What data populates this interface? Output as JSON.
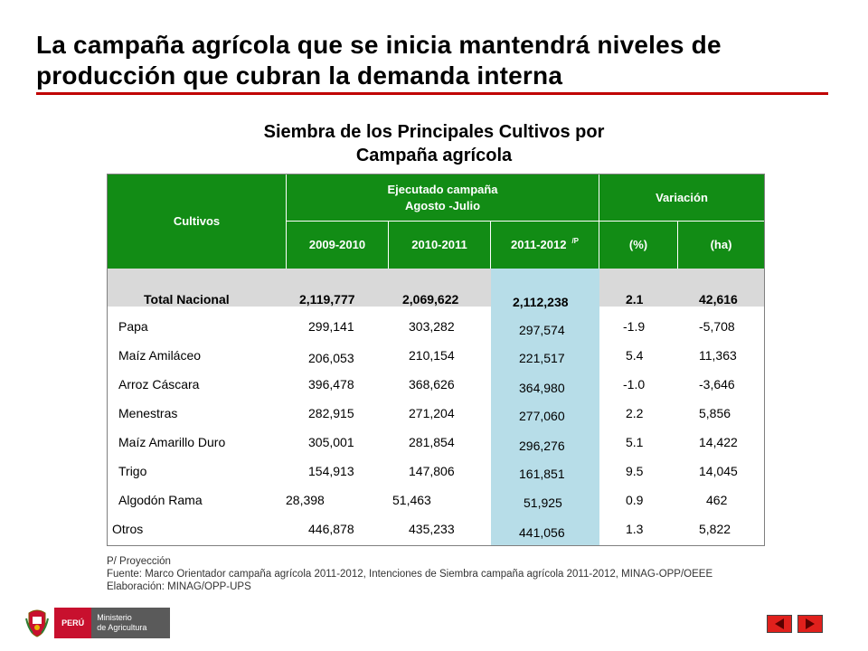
{
  "headline": {
    "line1": "La campaña agrícola que se inicia mantendrá niveles de",
    "line2": "producción que cubran la demanda interna"
  },
  "table_title": {
    "line1": "Siembra de los Principales Cultivos por",
    "line2": "Campaña agrícola"
  },
  "table": {
    "col_cultivos": "Cultivos",
    "group_ejecutado_line1": "Ejecutado  campaña",
    "group_ejecutado_line2": "Agosto -Julio",
    "group_variacion": "Variación",
    "sub_2009": "2009-2010",
    "sub_2010": "2010-2011",
    "sub_2011": "2011-2012",
    "sub_2011_mark": "/P",
    "sub_pct": "(%)",
    "sub_ha": "(ha)",
    "total": {
      "name": "Total Nacional",
      "v2009": "2,119,777",
      "v2010": "2,069,622",
      "v2011": "2,112,238",
      "pct": "2.1",
      "ha": "42,616"
    },
    "rows": [
      {
        "name": "Papa",
        "v2009": "299,141",
        "v2010": "303,282",
        "v2011": "297,574",
        "pct": "-1.9",
        "ha": "-5,708"
      },
      {
        "name": "Maíz Amiláceo",
        "v2009": "206,053",
        "v2010": "210,154",
        "v2011": "221,517",
        "pct": "5.4",
        "ha": "11,363"
      },
      {
        "name": "Arroz Cáscara",
        "v2009": "396,478",
        "v2010": "368,626",
        "v2011": "364,980",
        "pct": "-1.0",
        "ha": "-3,646"
      },
      {
        "name": "Menestras",
        "v2009": "282,915",
        "v2010": "271,204",
        "v2011": "277,060",
        "pct": "2.2",
        "ha": "5,856"
      },
      {
        "name": "Maíz Amarillo Duro",
        "v2009": "305,001",
        "v2010": "281,854",
        "v2011": "296,276",
        "pct": "5.1",
        "ha": "14,422"
      },
      {
        "name": "Trigo",
        "v2009": "154,913",
        "v2010": "147,806",
        "v2011": "161,851",
        "pct": "9.5",
        "ha": "14,045"
      },
      {
        "name": "Algodón Rama",
        "v2009": "28,398",
        "v2010": "51,463",
        "v2011": "51,925",
        "pct": "0.9",
        "ha": "462"
      },
      {
        "name": "Otros",
        "v2009": "446,878",
        "v2010": "435,233",
        "v2011": "441,056",
        "pct": "1.3",
        "ha": "5,822"
      }
    ]
  },
  "notes": {
    "line1": "P/ Proyección",
    "line2": "Fuente: Marco Orientador campaña agrícola 2011-2012,  Intenciones de Siembra campaña agrícola 2011-2012,  MINAG-OPP/OEEE",
    "line3": "Elaboración: MINAG/OPP-UPS"
  },
  "logo": {
    "peru": "PERÚ",
    "ministry_line1": "Ministerio",
    "ministry_line2": "de Agricultura"
  },
  "colors": {
    "header_green": "#128c15",
    "highlight_blue": "#b7dde8",
    "total_gray": "#d9d9d9",
    "accent_red": "#c00000"
  }
}
